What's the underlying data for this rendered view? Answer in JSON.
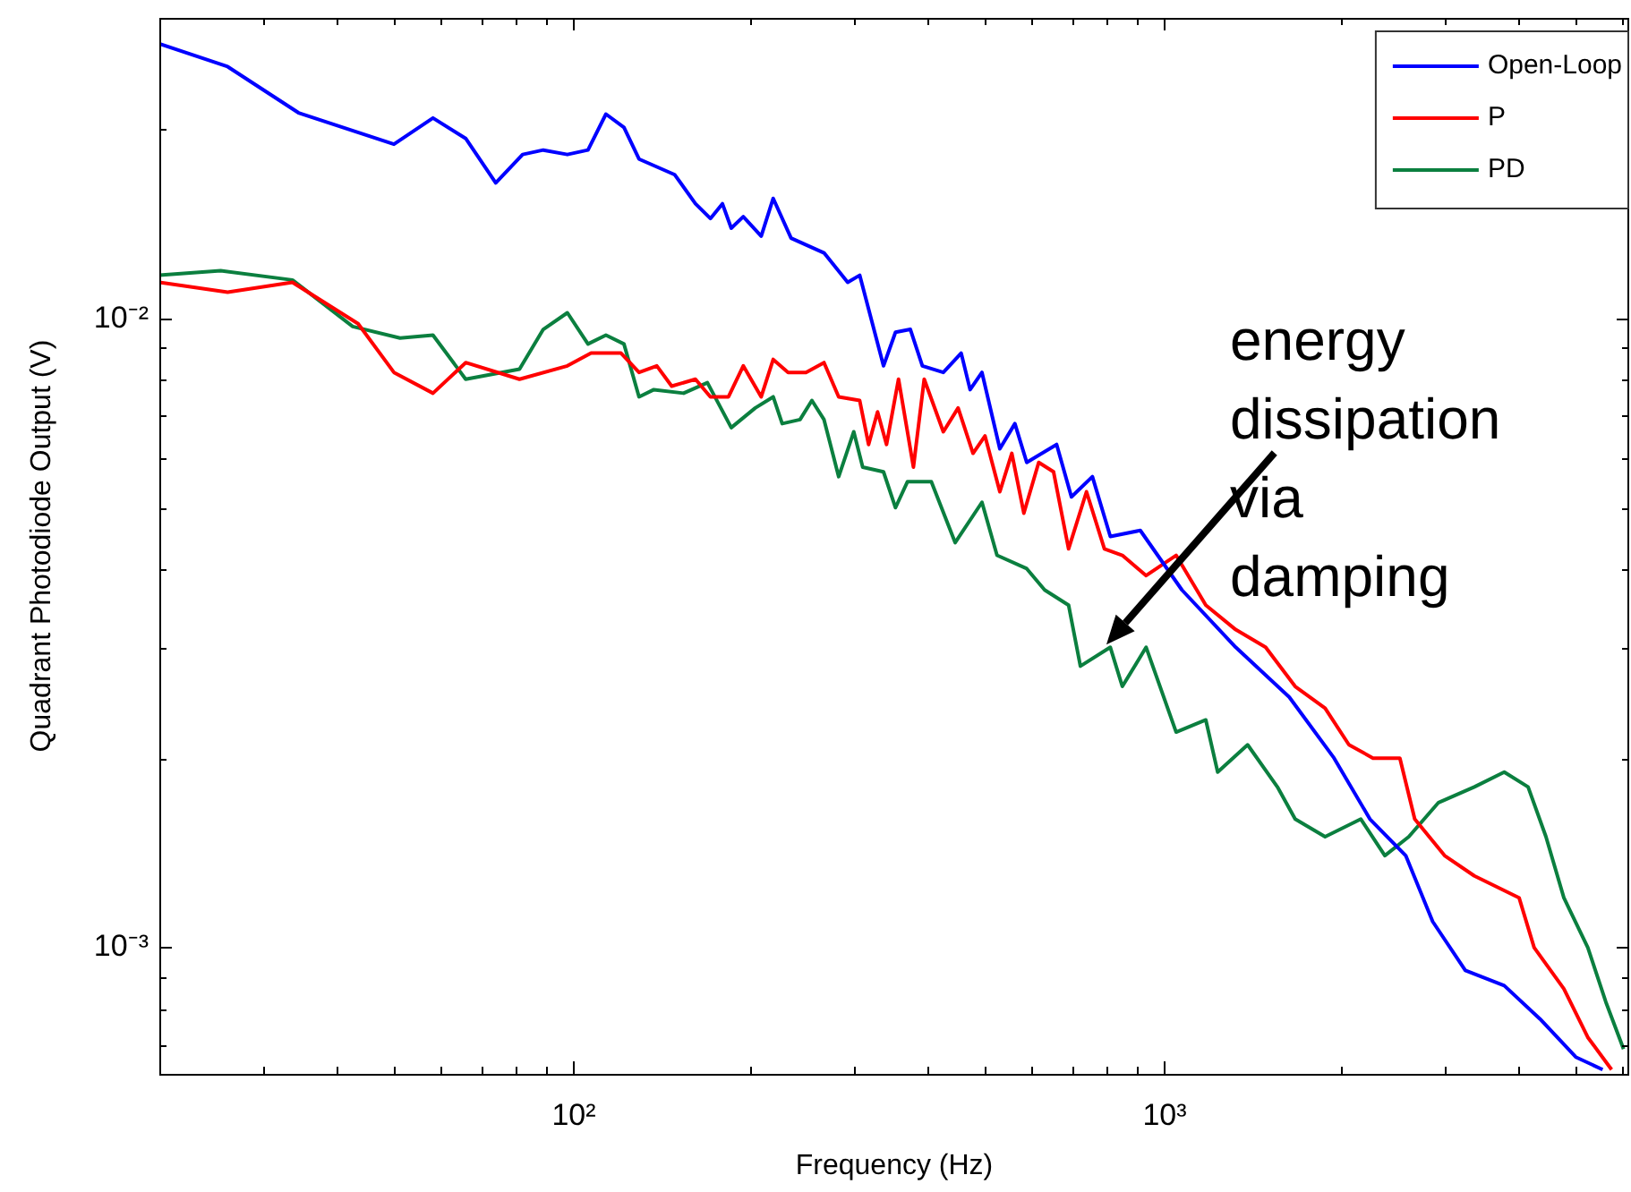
{
  "chart_data": {
    "type": "line",
    "xlabel": "Frequency (Hz)",
    "ylabel": "Quadrant Photodiode Output (V)",
    "log": "xy",
    "marker": "none",
    "legend": "top right",
    "xlim": [
      20,
      6150
    ],
    "ylim": [
      0.00063,
      0.03
    ],
    "xticks": [
      {
        "value": 30,
        "label": null
      },
      {
        "value": 40,
        "label": null
      },
      {
        "value": 50,
        "label": null
      },
      {
        "value": 60,
        "label": null
      },
      {
        "value": 70,
        "label": null
      },
      {
        "value": 80,
        "label": null
      },
      {
        "value": 90,
        "label": null
      },
      {
        "value": 100,
        "label": "10²"
      },
      {
        "value": 200,
        "label": null
      },
      {
        "value": 300,
        "label": null
      },
      {
        "value": 400,
        "label": null
      },
      {
        "value": 500,
        "label": null
      },
      {
        "value": 600,
        "label": null
      },
      {
        "value": 700,
        "label": null
      },
      {
        "value": 800,
        "label": null
      },
      {
        "value": 900,
        "label": null
      },
      {
        "value": 1000,
        "label": "10³"
      },
      {
        "value": 2000,
        "label": null
      },
      {
        "value": 3000,
        "label": null
      },
      {
        "value": 4000,
        "label": null
      },
      {
        "value": 5000,
        "label": null
      },
      {
        "value": 6000,
        "label": null
      }
    ],
    "yticks": [
      {
        "value": 0.0007,
        "label": null
      },
      {
        "value": 0.0008,
        "label": null
      },
      {
        "value": 0.0009,
        "label": null
      },
      {
        "value": 0.001,
        "label": "10⁻³"
      },
      {
        "value": 0.002,
        "label": null
      },
      {
        "value": 0.003,
        "label": null
      },
      {
        "value": 0.004,
        "label": null
      },
      {
        "value": 0.005,
        "label": null
      },
      {
        "value": 0.006,
        "label": null
      },
      {
        "value": 0.007,
        "label": null
      },
      {
        "value": 0.008,
        "label": null
      },
      {
        "value": 0.009,
        "label": null
      },
      {
        "value": 0.01,
        "label": "10⁻²"
      },
      {
        "value": 0.02,
        "label": null
      }
    ],
    "series": [
      {
        "name": "Open-Loop",
        "color": "#0000ff",
        "x": [
          20.0,
          26.1,
          34.4,
          49.9,
          58.1,
          66.0,
          74.2,
          82.4,
          89.3,
          98.1,
          106.3,
          114.0,
          122.3,
          129.7,
          149.1,
          161.6,
          171.3,
          179.5,
          185.8,
          194.7,
          208.8,
          218.8,
          234.6,
          266.7,
          292.5,
          306.5,
          336.3,
          352.4,
          373.4,
          391.3,
          424.6,
          455.2,
          471.3,
          493.6,
          529.2,
          561.2,
          587.7,
          660.3,
          699.5,
          759.1,
          814.0,
          914.9,
          1076,
          1327,
          1635,
          1947,
          2239,
          2574,
          2859,
          3247,
          3779,
          4345,
          4994,
          5545
        ],
        "values": [
          0.0273,
          0.0251,
          0.0212,
          0.0189,
          0.0208,
          0.0193,
          0.0164,
          0.0182,
          0.0185,
          0.0182,
          0.0185,
          0.0211,
          0.0201,
          0.0179,
          0.0169,
          0.0152,
          0.0144,
          0.0152,
          0.0139,
          0.0145,
          0.0135,
          0.0155,
          0.0134,
          0.0127,
          0.0114,
          0.0117,
          0.0084,
          0.0095,
          0.0096,
          0.0084,
          0.0082,
          0.0088,
          0.0077,
          0.0082,
          0.0062,
          0.0068,
          0.0059,
          0.0063,
          0.0052,
          0.0056,
          0.0045,
          0.0046,
          0.0037,
          0.003,
          0.0025,
          0.002,
          0.0016,
          0.0014,
          0.0011,
          0.00092,
          0.00087,
          0.00077,
          0.00067,
          0.00064
        ]
      },
      {
        "name": "P",
        "color": "#ff0000",
        "x": [
          20.0,
          26.1,
          33.6,
          43.4,
          49.9,
          58.1,
          66.0,
          81.4,
          98.1,
          107.6,
          120.9,
          129.7,
          139.0,
          147.3,
          161.6,
          171.3,
          183.8,
          194.7,
          208.8,
          218.8,
          231.9,
          248.6,
          266.7,
          282.4,
          306.5,
          317.3,
          328.6,
          340.3,
          356.6,
          377.9,
          394.1,
          424.6,
          449.8,
          476.7,
          499.5,
          529.2,
          554.5,
          581.1,
          615.8,
          652.5,
          691.8,
          741.8,
          795.5,
          853.0,
          935.9,
          1052,
          1181,
          1327,
          1491,
          1673,
          1880,
          2063,
          2266,
          2516,
          2666,
          2995,
          3363,
          4004,
          4246,
          4767,
          5234,
          5742
        ],
        "values": [
          0.0114,
          0.011,
          0.0114,
          0.0098,
          0.0082,
          0.0076,
          0.0085,
          0.008,
          0.0084,
          0.0088,
          0.0088,
          0.0082,
          0.0084,
          0.0078,
          0.008,
          0.0075,
          0.0075,
          0.0084,
          0.0075,
          0.0086,
          0.0082,
          0.0082,
          0.0085,
          0.0075,
          0.0074,
          0.0063,
          0.0071,
          0.0063,
          0.008,
          0.0058,
          0.008,
          0.0066,
          0.0072,
          0.0061,
          0.0065,
          0.0053,
          0.0061,
          0.0049,
          0.0059,
          0.0057,
          0.0043,
          0.0053,
          0.0043,
          0.0042,
          0.0039,
          0.0042,
          0.0035,
          0.0032,
          0.003,
          0.0026,
          0.0024,
          0.0021,
          0.002,
          0.002,
          0.0016,
          0.0014,
          0.0013,
          0.0012,
          0.001,
          0.00086,
          0.00072,
          0.00064
        ]
      },
      {
        "name": "PD",
        "color": "#0b7f3f",
        "x": [
          20.0,
          25.4,
          33.6,
          42.5,
          51.1,
          58.1,
          66.0,
          81.4,
          89.3,
          98.1,
          106.3,
          114.0,
          122.3,
          129.7,
          137.4,
          154.3,
          169.3,
          185.8,
          204.0,
          218.8,
          226.6,
          242.9,
          254.4,
          266.7,
          282.4,
          299.5,
          310.1,
          336.3,
          352.4,
          369.3,
          405.2,
          444.6,
          493.6,
          523.4,
          587.7,
          630.2,
          691.8,
          724.4,
          814.0,
          853.0,
          935.9,
          1052,
          1181,
          1237,
          1390,
          1561,
          1673,
          1880,
          2161,
          2373,
          2605,
          2925,
          3363,
          3779,
          4147,
          4446,
          4767,
          5234,
          5613,
          6016
        ],
        "values": [
          0.0117,
          0.0119,
          0.0115,
          0.0097,
          0.0093,
          0.0094,
          0.008,
          0.0083,
          0.0096,
          0.0102,
          0.0091,
          0.0094,
          0.0091,
          0.0075,
          0.0077,
          0.0076,
          0.0079,
          0.0067,
          0.0072,
          0.0075,
          0.0068,
          0.0069,
          0.0074,
          0.0069,
          0.0056,
          0.0066,
          0.0058,
          0.0057,
          0.005,
          0.0055,
          0.0055,
          0.0044,
          0.0051,
          0.0042,
          0.004,
          0.0037,
          0.0035,
          0.0028,
          0.003,
          0.0026,
          0.003,
          0.0022,
          0.0023,
          0.0019,
          0.0021,
          0.0018,
          0.0016,
          0.0015,
          0.0016,
          0.0014,
          0.0015,
          0.0017,
          0.0018,
          0.0019,
          0.0018,
          0.0015,
          0.0012,
          0.001,
          0.00082,
          0.00069
        ]
      }
    ],
    "annotations": [
      {
        "text": "energy dissipation via damping",
        "x": 770,
        "y": 0.0029
      }
    ]
  }
}
